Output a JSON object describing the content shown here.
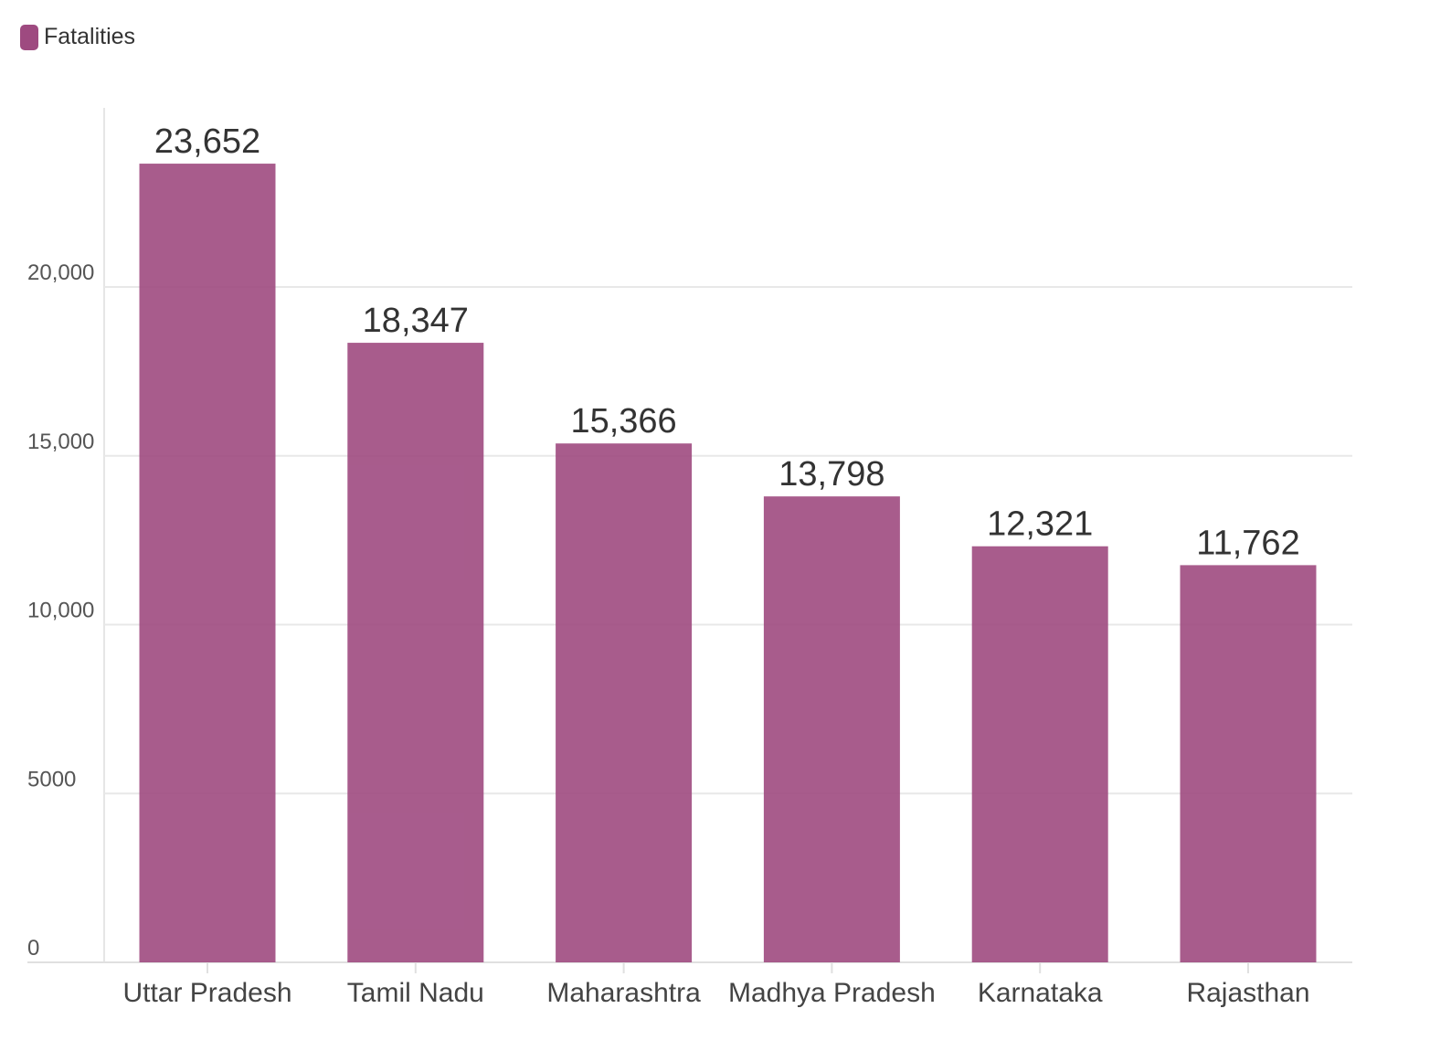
{
  "legend": {
    "label": "Fatalities",
    "color": "#9e4a80"
  },
  "chart_data": {
    "type": "bar",
    "categories": [
      "Uttar Pradesh",
      "Tamil Nadu",
      "Maharashtra",
      "Madhya Pradesh",
      "Karnataka",
      "Rajasthan"
    ],
    "series": [
      {
        "name": "Fatalities",
        "values": [
          23652,
          18347,
          15366,
          13798,
          12321,
          11762
        ],
        "color": "#9e4a80"
      }
    ],
    "value_labels": [
      "23,652",
      "18,347",
      "15,366",
      "13,798",
      "12,321",
      "11,762"
    ],
    "y_ticks": [
      0,
      5000,
      10000,
      15000,
      20000
    ],
    "y_tick_labels": [
      "0",
      "5000",
      "10,000",
      "15,000",
      "20,000"
    ],
    "ylim": [
      0,
      25000
    ],
    "grid": true,
    "legend_position": "top-left",
    "title": "",
    "xlabel": "",
    "ylabel": ""
  }
}
